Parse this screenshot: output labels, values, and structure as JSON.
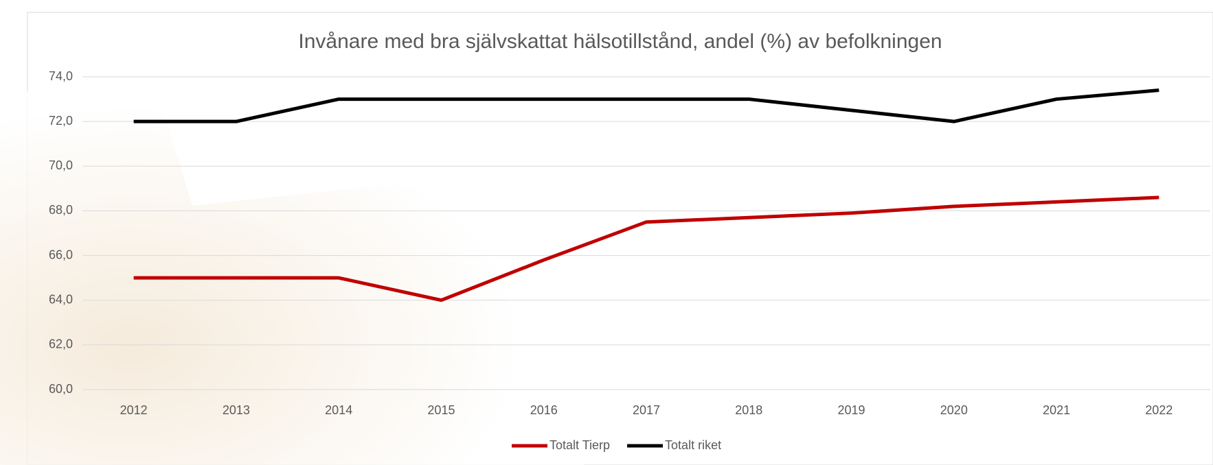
{
  "chart_data": {
    "type": "line",
    "title": "Invånare med bra självskattat hälsotillstånd, andel (%) av befolkningen",
    "categories": [
      "2012",
      "2013",
      "2014",
      "2015",
      "2016",
      "2017",
      "2018",
      "2019",
      "2020",
      "2021",
      "2022"
    ],
    "series": [
      {
        "name": "Totalt Tierp",
        "color": "#c00000",
        "values": [
          65,
          65,
          65,
          64,
          65.8,
          67.5,
          67.7,
          67.9,
          68.2,
          68.4,
          68.6
        ]
      },
      {
        "name": "Totalt riket",
        "color": "#000000",
        "values": [
          72,
          72,
          73,
          73,
          73,
          73,
          73,
          72.5,
          72,
          73,
          73.4
        ]
      }
    ],
    "ylim": [
      60,
      74
    ],
    "yticks": [
      {
        "value": 60,
        "label": "60,0"
      },
      {
        "value": 62,
        "label": "62,0"
      },
      {
        "value": 64,
        "label": "64,0"
      },
      {
        "value": 66,
        "label": "66,0"
      },
      {
        "value": 68,
        "label": "68,0"
      },
      {
        "value": 70,
        "label": "70,0"
      },
      {
        "value": 72,
        "label": "72,0"
      },
      {
        "value": 74,
        "label": "74,0"
      }
    ],
    "grid": true,
    "legend": "bottom"
  }
}
